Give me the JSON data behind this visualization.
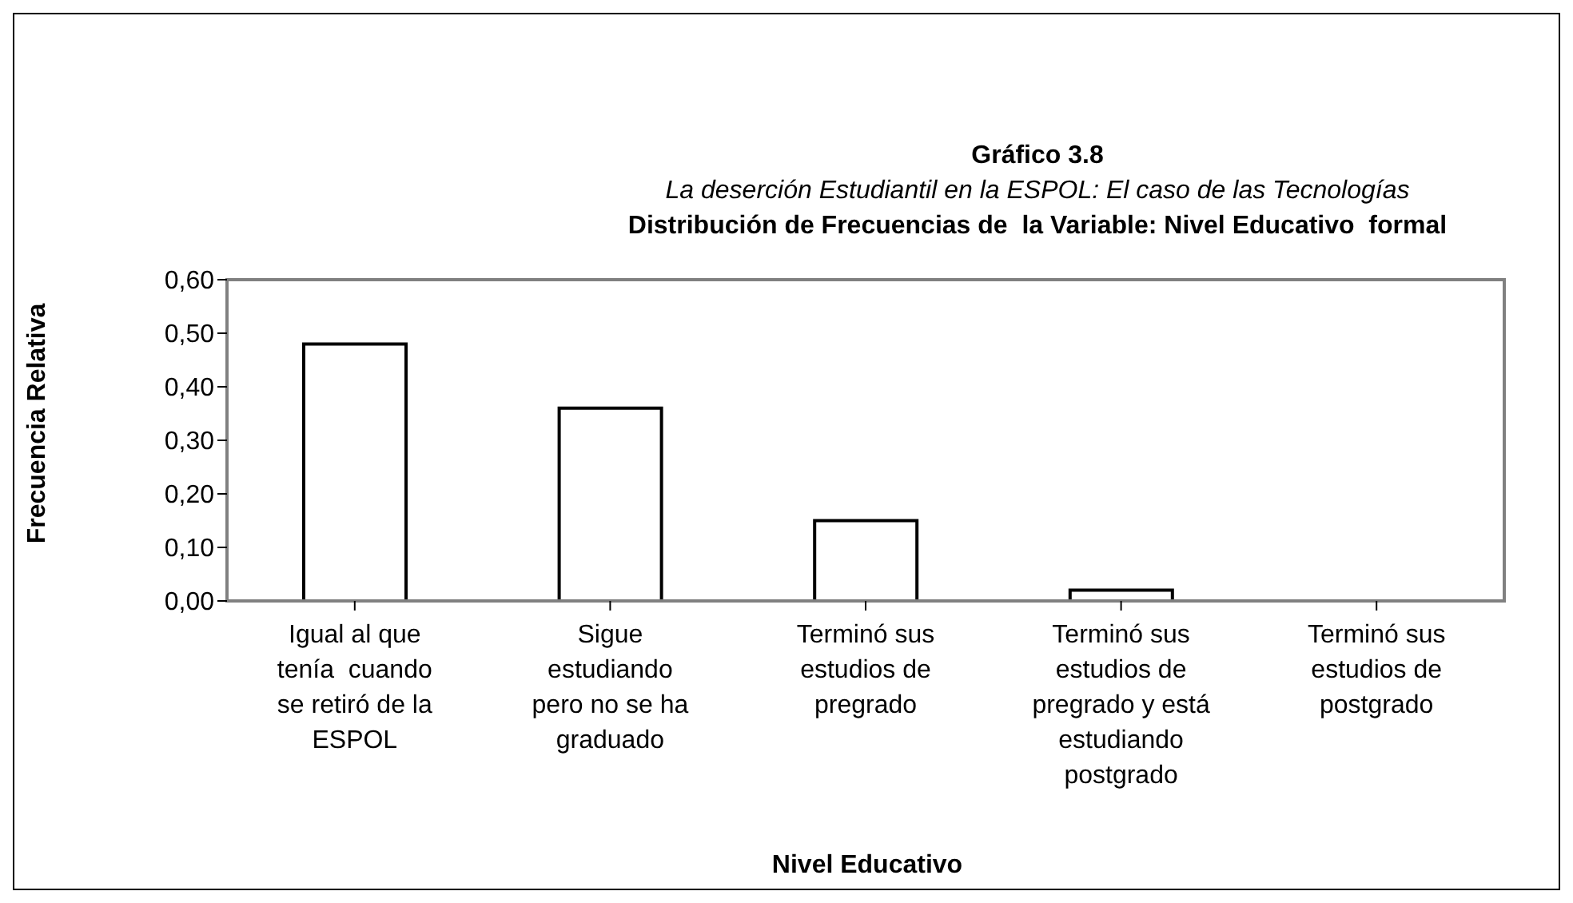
{
  "chart_data": {
    "type": "bar",
    "title": "Gráfico 3.8",
    "subtitle": "La deserción Estudiantil en la ESPOL: El caso de las Tecnologías",
    "annotations": [
      "Distribución de Frecuencias de  la Variable: Nivel Educativo  formal"
    ],
    "xlabel": "Nivel Educativo",
    "ylabel": "Frecuencia Relativa",
    "categories": [
      "Igual al que\ntenía  cuando\nse retiró de la\nESPOL",
      "Sigue\nestudiando\npero no se ha\ngraduado",
      "Terminó sus\nestudios de\npregrado",
      "Terminó sus\nestudios de\npregrado y está\nestudiando\npostgrado",
      "Terminó sus\nestudios de\npostgrado"
    ],
    "values": [
      0.48,
      0.36,
      0.15,
      0.02,
      0
    ],
    "color": "#ffffff",
    "ylim": [
      0,
      0.6
    ],
    "yticks": [
      {
        "value": 0,
        "label": "0,00"
      },
      {
        "value": 0.1,
        "label": "0,10"
      },
      {
        "value": 0.2,
        "label": "0,20"
      },
      {
        "value": 0.3,
        "label": "0,30"
      },
      {
        "value": 0.4,
        "label": "0,40"
      },
      {
        "value": 0.5,
        "label": "0,50"
      },
      {
        "value": 0.6,
        "label": "0,60"
      }
    ],
    "grid": false,
    "legend": false
  }
}
